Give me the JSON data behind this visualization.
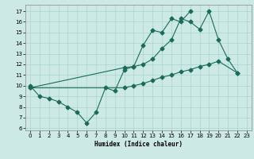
{
  "xlabel": "Humidex (Indice chaleur)",
  "xlim": [
    -0.5,
    23.5
  ],
  "ylim": [
    5.8,
    17.6
  ],
  "yticks": [
    6,
    7,
    8,
    9,
    10,
    11,
    12,
    13,
    14,
    15,
    16,
    17
  ],
  "xticks": [
    0,
    1,
    2,
    3,
    4,
    5,
    6,
    7,
    8,
    9,
    10,
    11,
    12,
    13,
    14,
    15,
    16,
    17,
    18,
    19,
    20,
    21,
    22,
    23
  ],
  "bg_color": "#cce9e5",
  "line_color": "#1a6b5a",
  "grid_color": "#aad4cf",
  "series1_x": [
    0,
    1,
    2,
    3,
    4,
    5,
    6,
    7,
    8,
    9,
    10,
    11,
    12,
    13,
    14,
    15,
    16,
    17
  ],
  "series1_y": [
    10.0,
    9.0,
    8.8,
    8.5,
    8.0,
    7.5,
    6.5,
    7.5,
    9.8,
    9.5,
    11.5,
    11.8,
    13.8,
    15.2,
    15.0,
    16.3,
    16.0,
    17.0
  ],
  "series2_x": [
    0,
    10,
    11,
    12,
    13,
    14,
    15,
    16,
    17,
    18,
    19,
    20,
    21,
    22
  ],
  "series2_y": [
    9.8,
    11.7,
    11.8,
    12.0,
    12.5,
    13.5,
    14.3,
    16.3,
    16.0,
    15.3,
    17.0,
    14.3,
    12.5,
    11.2
  ],
  "series3_x": [
    0,
    10,
    11,
    12,
    13,
    14,
    15,
    16,
    17,
    18,
    19,
    20,
    22
  ],
  "series3_y": [
    9.8,
    9.8,
    10.0,
    10.2,
    10.5,
    10.8,
    11.0,
    11.3,
    11.5,
    11.8,
    12.0,
    12.3,
    11.2
  ],
  "marker": "D",
  "marker_size": 2.5,
  "line_width": 0.8
}
